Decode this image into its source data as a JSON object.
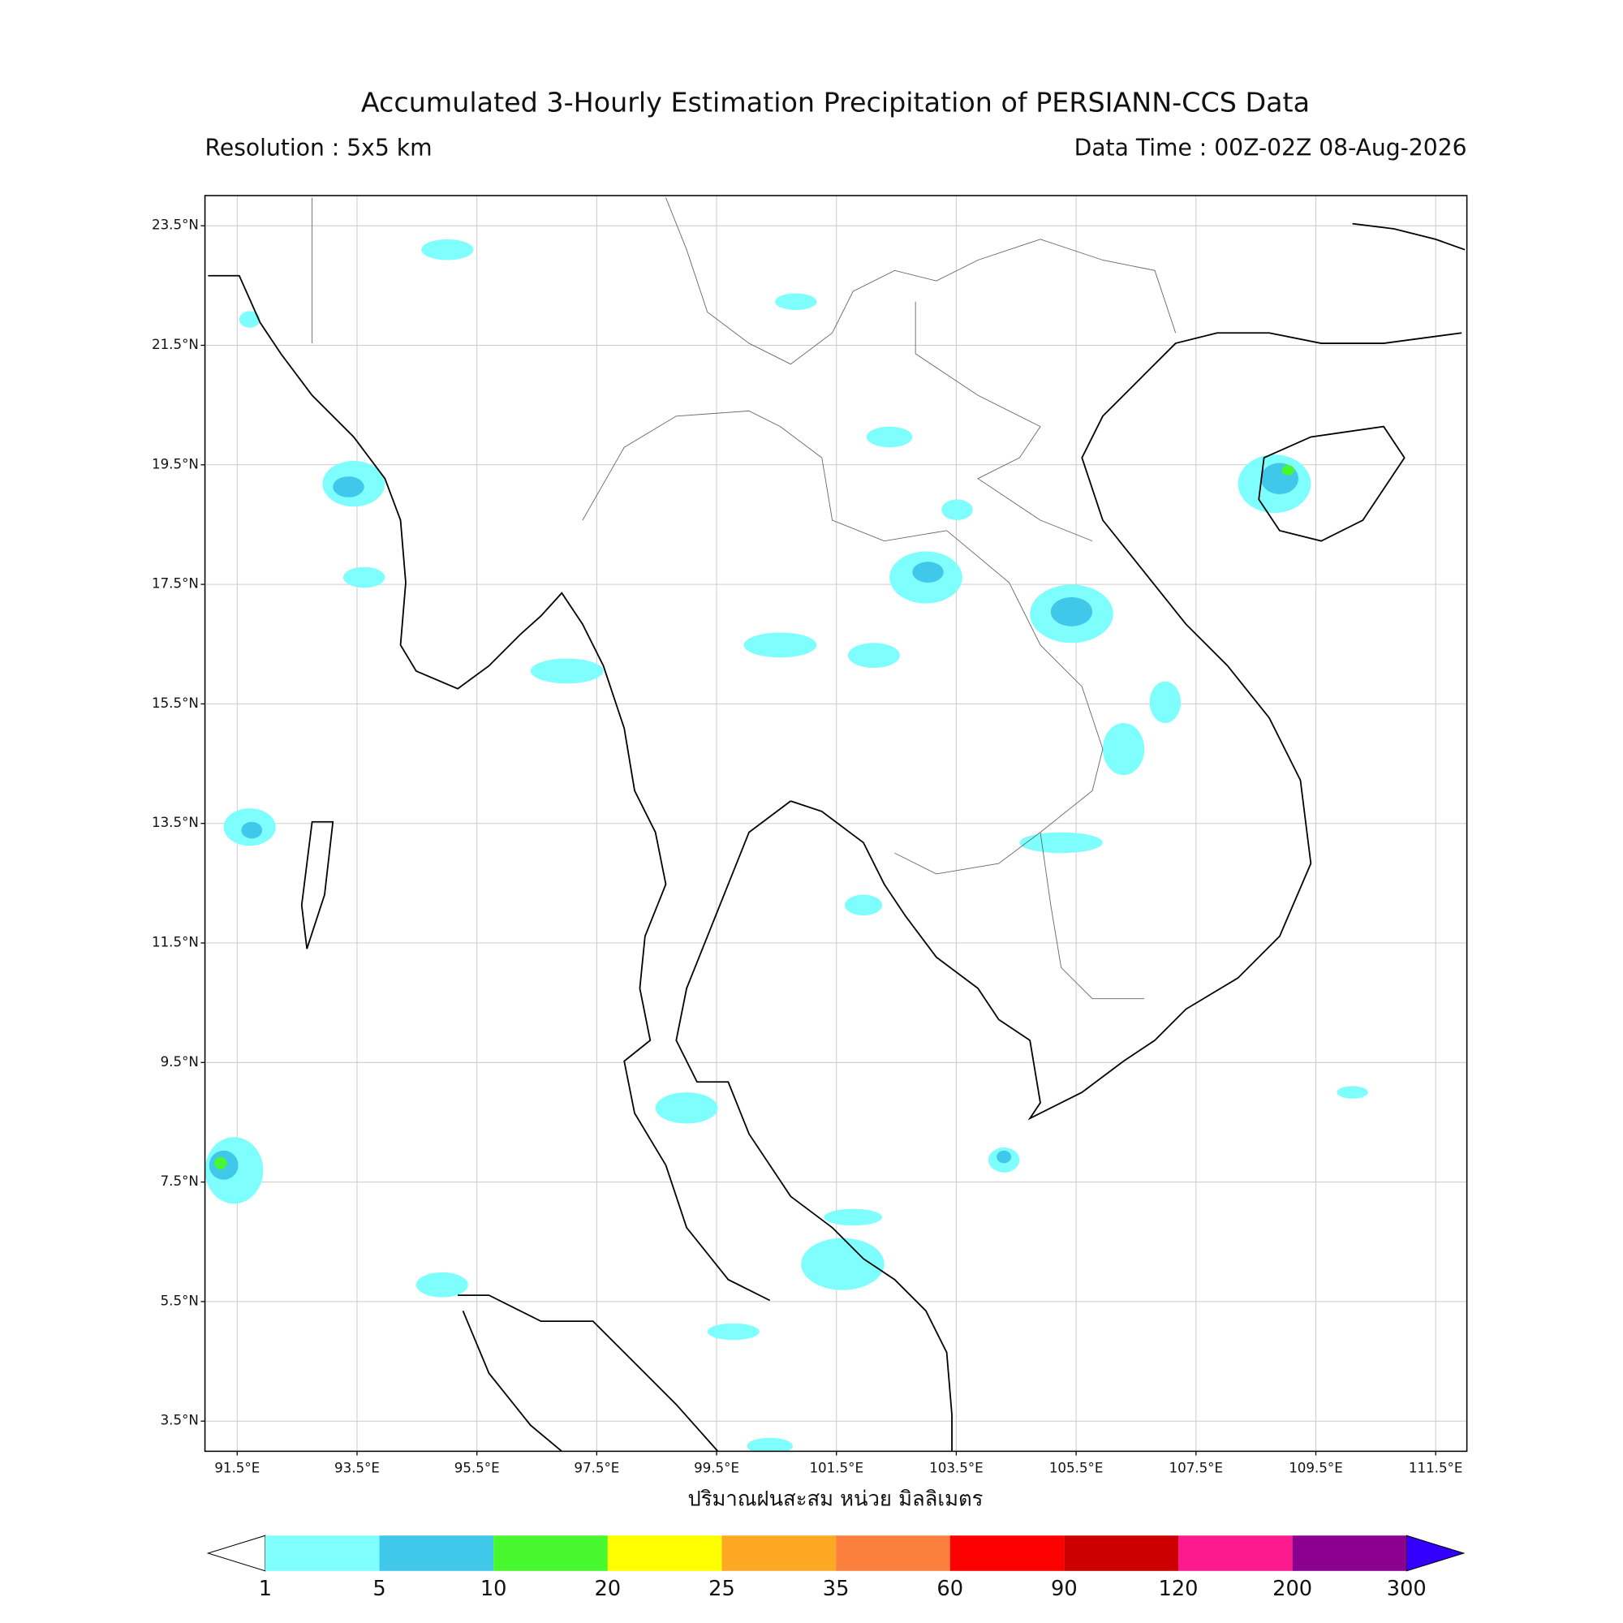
{
  "map": {
    "title": "Accumulated 3-Hourly Estimation Precipitation of PERSIANN-CCS Data",
    "resolution": "Resolution : 5x5 km",
    "data_time": "Data Time : 00Z-02Z 08-Aug-2026",
    "x_label": "ปริมาณฝนสะสม หน่วย มิลลิเมตร",
    "grid": true,
    "yticks": [
      {
        "value": 23.5,
        "label": "23.5°N"
      },
      {
        "value": 21.5,
        "label": "21.5°N"
      },
      {
        "value": 19.5,
        "label": "19.5°N"
      },
      {
        "value": 17.5,
        "label": "17.5°N"
      },
      {
        "value": 15.5,
        "label": "15.5°N"
      },
      {
        "value": 13.5,
        "label": "13.5°N"
      },
      {
        "value": 11.5,
        "label": "11.5°N"
      },
      {
        "value": 9.5,
        "label": "9.5°N"
      },
      {
        "value": 7.5,
        "label": "7.5°N"
      },
      {
        "value": 5.5,
        "label": "5.5°N"
      },
      {
        "value": 3.5,
        "label": "3.5°N"
      }
    ],
    "xticks": [
      {
        "value": 91.5,
        "label": "91.5°E"
      },
      {
        "value": 93.5,
        "label": "93.5°E"
      },
      {
        "value": 95.5,
        "label": "95.5°E"
      },
      {
        "value": 97.5,
        "label": "97.5°E"
      },
      {
        "value": 99.5,
        "label": "99.5°E"
      },
      {
        "value": 101.5,
        "label": "101.5°E"
      },
      {
        "value": 103.5,
        "label": "103.5°E"
      },
      {
        "value": 105.5,
        "label": "105.5°E"
      },
      {
        "value": 107.5,
        "label": "107.5°E"
      },
      {
        "value": 109.5,
        "label": "109.5°E"
      },
      {
        "value": 111.5,
        "label": "111.5°E"
      }
    ],
    "colorbar": {
      "levels": [
        1,
        5,
        10,
        20,
        25,
        35,
        60,
        90,
        120,
        200,
        300
      ],
      "colors": [
        "#7ffefe",
        "#3fc8ea",
        "#48f82e",
        "#fefe00",
        "#fca823",
        "#fc803d",
        "#fc0000",
        "#cc0000",
        "#fc1a8c",
        "#8c0090"
      ],
      "under_color": "#ffffff",
      "over_color": "#3300ff"
    }
  }
}
